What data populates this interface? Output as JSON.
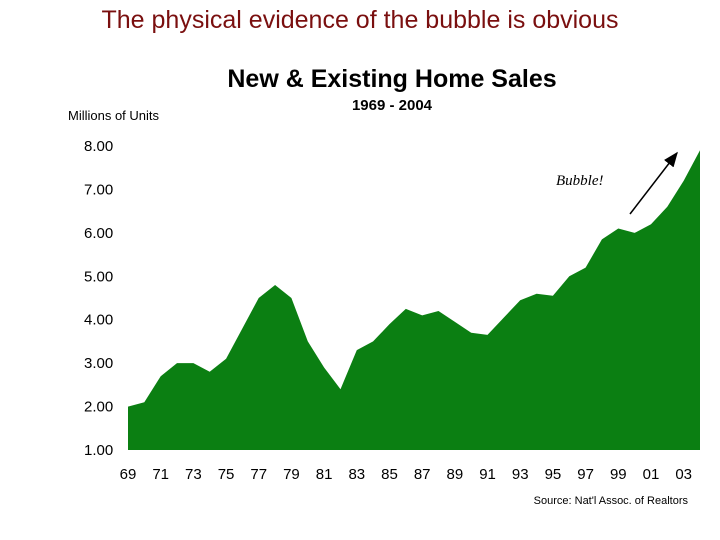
{
  "slide": {
    "title": "The physical evidence of the bubble is obvious"
  },
  "colors": {
    "title": "#7a0f0f",
    "area_fill": "#0b7f12",
    "text": "#000000"
  },
  "chart_data": {
    "type": "area",
    "title": "New & Existing Home Sales",
    "subtitle": "1969 - 2004",
    "ylabel": "Millions of Units",
    "xlabel": "",
    "ylim": [
      1.0,
      8.0
    ],
    "xlim": [
      1969,
      2004
    ],
    "y_ticks": [
      "8.00",
      "7.00",
      "6.00",
      "5.00",
      "4.00",
      "3.00",
      "2.00",
      "1.00"
    ],
    "x_ticks": [
      "69",
      "71",
      "73",
      "75",
      "77",
      "79",
      "81",
      "83",
      "85",
      "87",
      "89",
      "91",
      "93",
      "95",
      "97",
      "99",
      "01",
      "03"
    ],
    "x": [
      1969,
      1970,
      1971,
      1972,
      1973,
      1974,
      1975,
      1976,
      1977,
      1978,
      1979,
      1980,
      1981,
      1982,
      1983,
      1984,
      1985,
      1986,
      1987,
      1988,
      1989,
      1990,
      1991,
      1992,
      1993,
      1994,
      1995,
      1996,
      1997,
      1998,
      1999,
      2000,
      2001,
      2002,
      2003,
      2004
    ],
    "values": [
      2.0,
      2.1,
      2.7,
      3.0,
      3.0,
      2.8,
      3.1,
      3.8,
      4.5,
      4.8,
      4.5,
      3.5,
      2.9,
      2.4,
      3.3,
      3.5,
      3.9,
      4.25,
      4.1,
      4.2,
      3.95,
      3.7,
      3.65,
      4.05,
      4.45,
      4.6,
      4.55,
      5.0,
      5.2,
      5.85,
      6.1,
      6.0,
      6.2,
      6.6,
      7.2,
      7.9
    ],
    "annotation": "Bubble!",
    "source": "Source: Nat'l Assoc. of Realtors"
  }
}
